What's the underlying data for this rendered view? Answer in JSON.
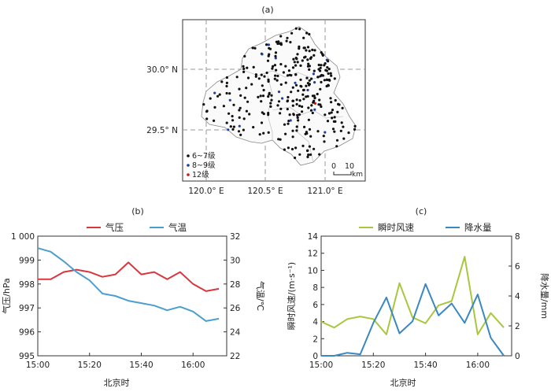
{
  "figure": [
    {
      "panel": "(a)",
      "type": "map",
      "lat_ticks": [
        "30.0° N",
        "29.5° N"
      ],
      "lon_ticks": [
        "120.0° E",
        "120.5° E",
        "121.0° E"
      ],
      "legend": [
        "6~7级",
        "8~9级",
        "12级"
      ],
      "legend_colors": [
        "#111111",
        "#1f3fa8",
        "#c81818"
      ],
      "scale_bar": {
        "start": "0",
        "end": "10",
        "unit": "km"
      }
    }
  ],
  "chart_data": [
    {
      "panel": "(b)",
      "type": "line",
      "xlabel": "北京时",
      "x": [
        "15:00",
        "15:05",
        "15:10",
        "15:15",
        "15:20",
        "15:25",
        "15:30",
        "15:35",
        "15:40",
        "15:45",
        "15:50",
        "15:55",
        "16:00",
        "16:05",
        "16:10"
      ],
      "x_ticks": [
        "15:00",
        "15:20",
        "15:40",
        "16:00"
      ],
      "series": [
        {
          "name": "气压",
          "axis": "left",
          "color": "#d9363e",
          "values": [
            998.2,
            998.2,
            998.5,
            998.6,
            998.5,
            998.3,
            998.4,
            998.9,
            998.4,
            998.5,
            998.2,
            998.5,
            998.0,
            997.7,
            997.8
          ]
        },
        {
          "name": "气温",
          "axis": "right",
          "color": "#4a9ed0",
          "values": [
            31.0,
            30.7,
            29.9,
            29.0,
            28.3,
            27.2,
            27.0,
            26.6,
            26.4,
            26.2,
            25.8,
            26.1,
            25.7,
            24.9,
            25.1
          ]
        }
      ],
      "ylabel_left": "气压/hPa",
      "ylim_left": [
        995,
        1000
      ],
      "yticks_left": [
        "995",
        "996",
        "997",
        "998",
        "999",
        "1 000"
      ],
      "ylabel_right": "气温/℃",
      "ylim_right": [
        22,
        32
      ],
      "yticks_right": [
        "22",
        "24",
        "26",
        "28",
        "30",
        "32"
      ]
    },
    {
      "panel": "(c)",
      "type": "line",
      "xlabel": "北京时",
      "x": [
        "15:00",
        "15:05",
        "15:10",
        "15:15",
        "15:20",
        "15:25",
        "15:30",
        "15:35",
        "15:40",
        "15:45",
        "15:50",
        "15:55",
        "16:00",
        "16:05",
        "16:10"
      ],
      "x_ticks": [
        "15:00",
        "15:20",
        "15:40",
        "16:00"
      ],
      "series": [
        {
          "name": "瞬时风速",
          "axis": "left",
          "color": "#a8c63e",
          "values": [
            4.0,
            3.3,
            4.3,
            4.6,
            4.3,
            2.5,
            8.5,
            4.5,
            3.8,
            5.9,
            6.4,
            11.6,
            2.5,
            5.0,
            3.3
          ]
        },
        {
          "name": "降水量",
          "axis": "right",
          "color": "#3a88c0",
          "values": [
            0,
            0,
            0.2,
            0.1,
            2.2,
            3.9,
            1.5,
            2.3,
            4.8,
            2.7,
            3.5,
            2.2,
            4.1,
            1.2,
            0
          ]
        }
      ],
      "ylabel_left": "瞬时风速/(m·s⁻¹)",
      "ylim_left": [
        0,
        14
      ],
      "yticks_left": [
        "0",
        "2",
        "4",
        "6",
        "8",
        "10",
        "12",
        "14"
      ],
      "ylabel_right": "降水量/mm",
      "ylim_right": [
        0,
        8
      ],
      "yticks_right": [
        "0",
        "2",
        "4",
        "6",
        "8"
      ]
    }
  ]
}
